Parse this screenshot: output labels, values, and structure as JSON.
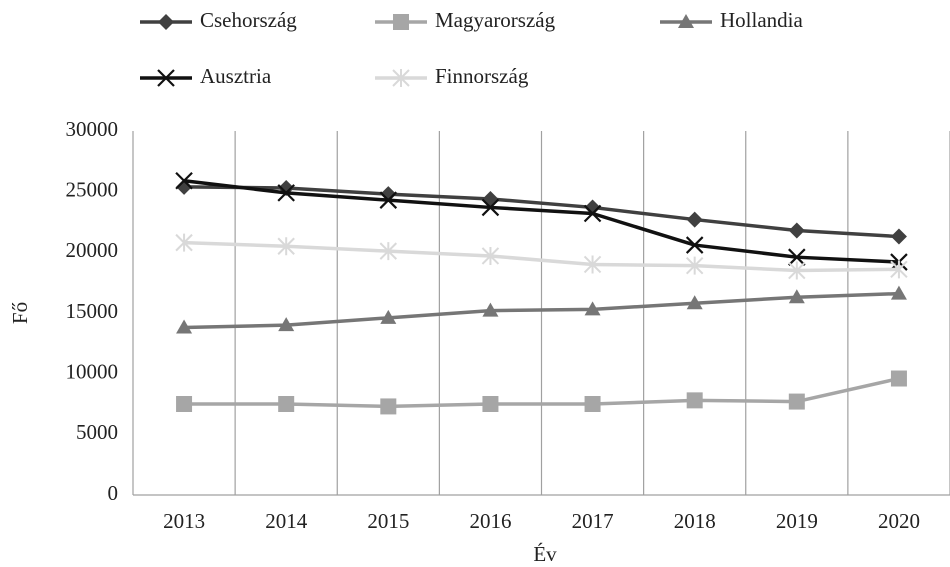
{
  "chart_data": {
    "type": "line",
    "x_label": "Év",
    "y_label": "Fő",
    "categories": [
      "2013",
      "2014",
      "2015",
      "2016",
      "2017",
      "2018",
      "2019",
      "2020"
    ],
    "series": [
      {
        "name": "Csehország",
        "color": "#404040",
        "marker": "diamond",
        "values": [
          25400,
          25300,
          24800,
          24400,
          23700,
          22700,
          21800,
          21300
        ]
      },
      {
        "name": "Magyarország",
        "color": "#a6a6a6",
        "marker": "square",
        "values": [
          7500,
          7500,
          7300,
          7500,
          7500,
          7800,
          7700,
          9600
        ]
      },
      {
        "name": "Hollandia",
        "color": "#767676",
        "marker": "triangle",
        "values": [
          13800,
          14000,
          14600,
          15200,
          15300,
          15800,
          16300,
          16600
        ]
      },
      {
        "name": "Ausztria",
        "color": "#111111",
        "marker": "x",
        "values": [
          25900,
          24900,
          24300,
          23700,
          23200,
          20600,
          19600,
          19200
        ]
      },
      {
        "name": "Finnország",
        "color": "#d9d9d9",
        "marker": "asterisk",
        "values": [
          20800,
          20500,
          20100,
          19700,
          19000,
          18900,
          18500,
          18600
        ]
      }
    ],
    "ylim": [
      0,
      30000
    ],
    "yticks": [
      0,
      5000,
      10000,
      15000,
      20000,
      25000,
      30000
    ],
    "category_grid": true
  }
}
